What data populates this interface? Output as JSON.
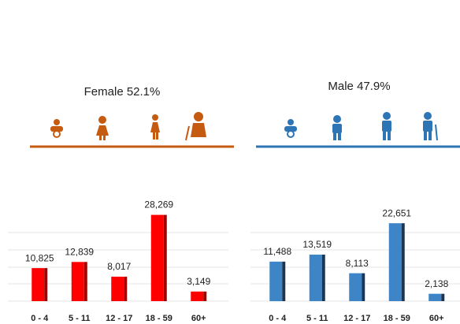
{
  "chart_data": [
    {
      "type": "bar",
      "title": "Female 52.1%",
      "title_color": "#c55a11",
      "categories": [
        "0 - 4",
        "5 - 11",
        "12 - 17",
        "18 - 59",
        "60+"
      ],
      "values": [
        10825,
        12839,
        8017,
        28269,
        3149
      ],
      "value_labels": [
        "10,825",
        "12,839",
        "8,017",
        "28,269",
        "3,149"
      ],
      "color": "#ff0000",
      "shade": "#a30000",
      "ylim": [
        0,
        31000
      ]
    },
    {
      "type": "bar",
      "title": "Male 47.9%",
      "title_color": "#2e75b6",
      "categories": [
        "0 - 4",
        "5 - 11",
        "12 - 17",
        "18 - 59",
        "60+"
      ],
      "values": [
        11488,
        13519,
        8113,
        22651,
        2138
      ],
      "value_labels": [
        "11,488",
        "13,519",
        "8,113",
        "22,651",
        "2,138"
      ],
      "color": "#3d85c6",
      "shade": "#1c3553",
      "ylim": [
        0,
        27500
      ]
    }
  ]
}
